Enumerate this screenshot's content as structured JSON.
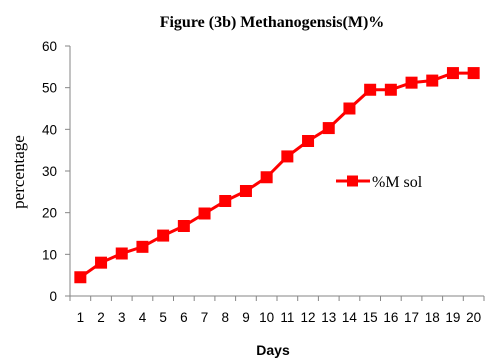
{
  "chart_data": {
    "type": "line",
    "title": "Figure (3b) Methanogensis(M)%",
    "xlabel": "Days",
    "ylabel": "percentage",
    "x": [
      1,
      2,
      3,
      4,
      5,
      6,
      7,
      8,
      9,
      10,
      11,
      12,
      13,
      14,
      15,
      16,
      17,
      18,
      19,
      20
    ],
    "ylim": [
      0,
      60
    ],
    "yticks": [
      0,
      10,
      20,
      30,
      40,
      50,
      60
    ],
    "grid": false,
    "legend_position": "right",
    "series": [
      {
        "name": "%M sol",
        "color": "#ff0000",
        "marker": "square",
        "values": [
          4.5,
          8.0,
          10.2,
          11.8,
          14.5,
          16.8,
          19.8,
          22.8,
          25.2,
          28.5,
          33.5,
          37.2,
          40.3,
          45.0,
          49.5,
          49.5,
          51.2,
          51.7,
          53.5,
          53.5
        ]
      }
    ]
  }
}
